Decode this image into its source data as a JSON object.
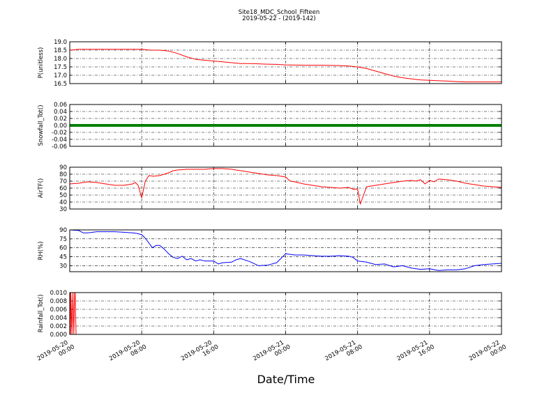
{
  "figure": {
    "title": "Site18_MDC_School_Fifteen",
    "subtitle": "2019-05-22 - (2019-142)",
    "xlabel": "Date/Time",
    "x_tick_labels": [
      [
        "2019-05-20",
        "00:00"
      ],
      [
        "2019-05-20",
        "08:00"
      ],
      [
        "2019-05-20",
        "16:00"
      ],
      [
        "2019-05-21",
        "00:00"
      ],
      [
        "2019-05-21",
        "08:00"
      ],
      [
        "2019-05-21",
        "16:00"
      ],
      [
        "2019-05-22",
        "00:00"
      ]
    ]
  },
  "chart_data": [
    {
      "type": "line",
      "ylabel": "P(unitless)",
      "ylim": [
        16.5,
        19.0
      ],
      "yticks": [
        "19.0",
        "18.5",
        "18.0",
        "17.5",
        "17.0",
        "16.5"
      ],
      "xlim_hours": [
        0,
        48
      ],
      "grid": true,
      "color": "#ff0000",
      "series": [
        {
          "x": [
            0,
            1,
            2,
            4,
            6,
            8,
            9,
            10,
            11,
            12,
            13,
            14,
            15,
            16,
            17,
            18,
            19,
            20,
            21,
            22,
            23,
            24,
            26,
            28,
            30,
            31,
            32,
            33,
            34,
            35,
            36,
            37,
            38,
            39,
            40,
            41,
            42,
            43,
            44,
            45,
            46,
            47,
            48
          ],
          "y": [
            18.5,
            18.55,
            18.55,
            18.55,
            18.55,
            18.55,
            18.5,
            18.5,
            18.45,
            18.3,
            18.1,
            17.95,
            17.9,
            17.85,
            17.8,
            17.75,
            17.7,
            17.7,
            17.68,
            17.66,
            17.65,
            17.62,
            17.6,
            17.6,
            17.58,
            17.55,
            17.5,
            17.4,
            17.25,
            17.1,
            16.95,
            16.85,
            16.78,
            16.72,
            16.7,
            16.67,
            16.65,
            16.62,
            16.6,
            16.6,
            16.6,
            16.6,
            16.6
          ]
        }
      ]
    },
    {
      "type": "line",
      "ylabel": "Snowfall_Tot()",
      "ylim": [
        -0.06,
        0.06
      ],
      "yticks": [
        "0.06",
        "0.04",
        "0.02",
        "0.00",
        "-0.02",
        "-0.04",
        "-0.06"
      ],
      "xlim_hours": [
        0,
        48
      ],
      "grid": true,
      "color": "#008000",
      "series": [
        {
          "x": [
            0,
            48
          ],
          "y": [
            0,
            0
          ]
        }
      ]
    },
    {
      "type": "line",
      "ylabel": "AirTF()",
      "ylim": [
        30,
        90
      ],
      "yticks": [
        "90",
        "80",
        "70",
        "60",
        "50",
        "40",
        "30"
      ],
      "xlim_hours": [
        0,
        48
      ],
      "grid": true,
      "color": "#ff0000",
      "series": [
        {
          "x": [
            0,
            1,
            1.5,
            2,
            3,
            4,
            5,
            6,
            7,
            7.3,
            7.6,
            8,
            8.4,
            8.8,
            9.3,
            10,
            10.5,
            11,
            11.5,
            12,
            13,
            14,
            15,
            16,
            17,
            18,
            19,
            20,
            21,
            22,
            23,
            24,
            24.5,
            25,
            26,
            27,
            28,
            29,
            30,
            31,
            31.6,
            32,
            32.3,
            33,
            34,
            35,
            36,
            37,
            38,
            38.5,
            39,
            39.5,
            40,
            40.5,
            41,
            42,
            43,
            44,
            45,
            46,
            47,
            48
          ],
          "y": [
            66,
            67,
            68,
            69,
            68,
            66,
            64,
            64,
            66,
            68,
            64,
            46,
            70,
            78,
            77,
            78,
            80,
            82,
            85,
            86,
            87,
            87,
            87,
            88,
            88,
            87,
            85,
            83,
            81,
            79,
            78,
            76,
            70,
            69,
            66,
            64,
            62,
            61,
            60,
            61,
            58,
            59,
            37,
            62,
            64,
            66,
            68,
            70,
            71,
            70,
            72,
            66,
            71,
            69,
            73,
            72,
            70,
            67,
            65,
            63,
            62,
            61
          ]
        }
      ]
    },
    {
      "type": "line",
      "ylabel": "RH(%)",
      "ylim": [
        20,
        90
      ],
      "yticks": [
        "90",
        "75",
        "60",
        "45",
        "30"
      ],
      "xlim_hours": [
        0,
        48
      ],
      "grid": true,
      "color": "#0000ff",
      "series": [
        {
          "x": [
            0,
            1,
            1.5,
            2,
            3,
            4,
            5,
            6,
            7,
            7.5,
            8,
            8.4,
            8.8,
            9.2,
            9.6,
            10,
            10.5,
            11,
            11.5,
            12,
            12.5,
            13,
            13.5,
            14,
            14.5,
            15,
            16,
            16.5,
            17,
            18,
            18.5,
            19,
            20,
            21,
            22,
            23,
            24,
            25,
            26,
            27,
            28,
            29,
            30,
            31,
            31.5,
            32,
            33,
            34,
            35,
            36,
            37,
            38,
            39,
            40,
            41,
            42,
            43,
            44,
            45,
            46,
            47,
            48
          ],
          "y": [
            90,
            89,
            85,
            85,
            87,
            87,
            87,
            86,
            85,
            84,
            82,
            76,
            68,
            60,
            64,
            64,
            58,
            50,
            44,
            42,
            46,
            40,
            42,
            38,
            40,
            38,
            38,
            33,
            35,
            36,
            40,
            42,
            37,
            30,
            31,
            35,
            50,
            48,
            48,
            47,
            46,
            46,
            47,
            46,
            44,
            38,
            36,
            32,
            33,
            28,
            30,
            26,
            24,
            25,
            22,
            23,
            23,
            25,
            30,
            32,
            33,
            34
          ]
        }
      ]
    },
    {
      "type": "line",
      "ylabel": "Rainfall_Tot()",
      "ylim": [
        0,
        0.01
      ],
      "yticks": [
        "0.010",
        "0.008",
        "0.006",
        "0.004",
        "0.002",
        "0.000"
      ],
      "xlim_hours": [
        0,
        48
      ],
      "grid": true,
      "color": "#ff0000",
      "series": [
        {
          "x": [
            0,
            0.04,
            0.08,
            0.12,
            0.25,
            0.35,
            0.45,
            0.55,
            0.6,
            0.7,
            48
          ],
          "y": [
            0,
            0.01,
            0.0,
            0.01,
            0.0,
            0.01,
            0.0,
            0.01,
            0.01,
            0.0,
            0.0
          ]
        }
      ]
    }
  ]
}
